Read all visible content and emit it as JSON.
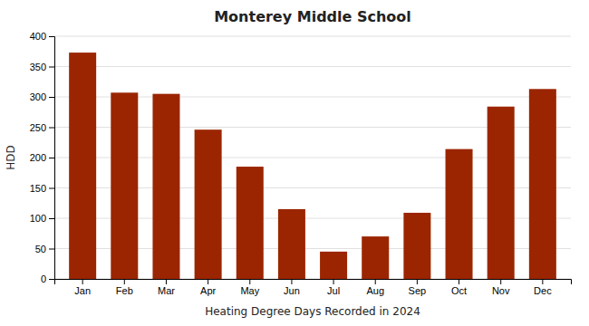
{
  "chart_data": {
    "type": "bar",
    "title": "Monterey Middle School",
    "xlabel": "Heating Degree Days Recorded in 2024",
    "ylabel": "HDD",
    "categories": [
      "Jan",
      "Feb",
      "Mar",
      "Apr",
      "May",
      "Jun",
      "Jul",
      "Aug",
      "Sep",
      "Oct",
      "Nov",
      "Dec"
    ],
    "values": [
      373,
      307,
      305,
      246,
      185,
      115,
      45,
      70,
      109,
      214,
      284,
      313
    ],
    "color": "#9B2500",
    "ylim": [
      0,
      400
    ],
    "yticks": [
      0,
      50,
      100,
      150,
      200,
      250,
      300,
      350,
      400
    ],
    "grid": true
  }
}
